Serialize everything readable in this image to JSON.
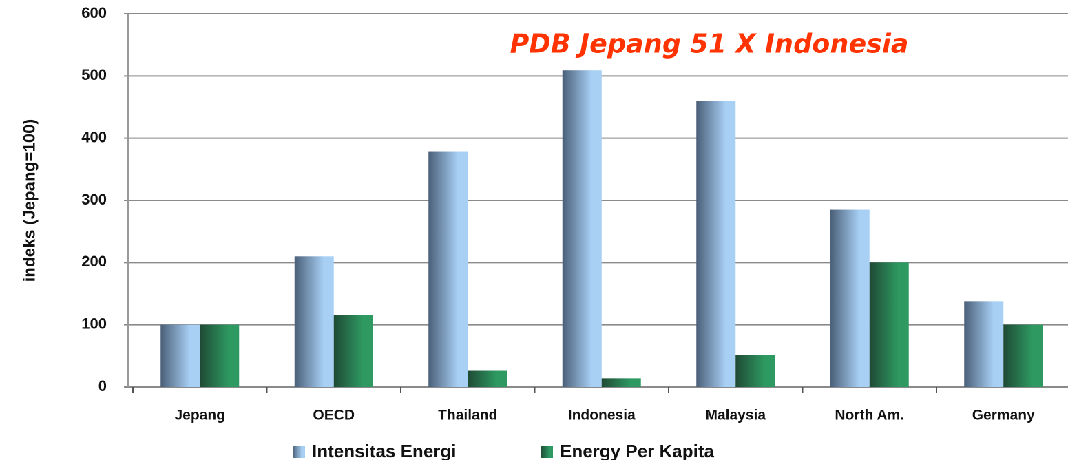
{
  "chart_data": {
    "type": "bar",
    "annotation": "PDB Jepang 51 X Indonesia",
    "y_label": "indeks (Jepang=100)",
    "categories": [
      "Jepang",
      "OECD",
      "Thailand",
      "Indonesia",
      "Malaysia",
      "North Am.",
      "Germany"
    ],
    "series": [
      {
        "name": "Intensitas Energi",
        "color": "#a8d0f5",
        "values": [
          100,
          210,
          378,
          509,
          460,
          285,
          138
        ]
      },
      {
        "name": "Energy Per Kapita",
        "color": "#2e9a62",
        "values": [
          100,
          116,
          26,
          14,
          52,
          200,
          100
        ]
      }
    ],
    "ylim": [
      0,
      600
    ],
    "yticks": [
      0,
      100,
      200,
      300,
      400,
      500,
      600
    ],
    "grid": true,
    "legend": "bottom"
  }
}
